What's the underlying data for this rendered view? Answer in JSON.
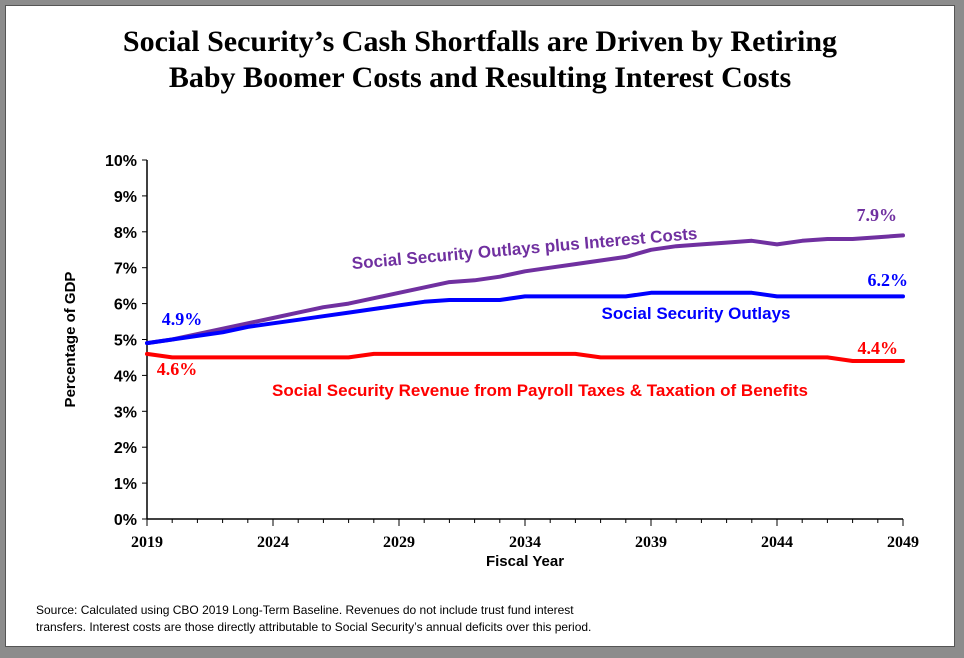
{
  "title_line1": "Social Security’s Cash Shortfalls are Driven by Retiring",
  "title_line2": "Baby Boomer Costs and Resulting Interest Costs",
  "source_line1": "Source: Calculated using CBO 2019 Long-Term Baseline. Revenues do not include trust fund interest",
  "source_line2": "transfers. Interest costs are those directly attributable to Social Security’s annual deficits over this period.",
  "colors": {
    "interest": "#7030a0",
    "outlays": "#0000ff",
    "revenue": "#ff0000"
  },
  "chart_data": {
    "type": "line",
    "xlabel": "Fiscal Year",
    "ylabel": "Percentage of GDP",
    "xlim": [
      2019,
      2049
    ],
    "ylim": [
      0,
      10
    ],
    "x_ticks": [
      2019,
      2024,
      2029,
      2034,
      2039,
      2044,
      2049
    ],
    "y_ticks": [
      "0%",
      "1%",
      "2%",
      "3%",
      "4%",
      "5%",
      "6%",
      "7%",
      "8%",
      "9%",
      "10%"
    ],
    "grid": false,
    "x": [
      2019,
      2020,
      2021,
      2022,
      2023,
      2024,
      2025,
      2026,
      2027,
      2028,
      2029,
      2030,
      2031,
      2032,
      2033,
      2034,
      2035,
      2036,
      2037,
      2038,
      2039,
      2040,
      2041,
      2042,
      2043,
      2044,
      2045,
      2046,
      2047,
      2048,
      2049
    ],
    "series": [
      {
        "name": "Social Security Outlays plus Interest Costs",
        "color_key": "interest",
        "values": [
          4.9,
          5.0,
          5.15,
          5.3,
          5.45,
          5.6,
          5.75,
          5.9,
          6.0,
          6.15,
          6.3,
          6.45,
          6.6,
          6.65,
          6.75,
          6.9,
          7.0,
          7.1,
          7.2,
          7.3,
          7.5,
          7.6,
          7.65,
          7.7,
          7.75,
          7.65,
          7.75,
          7.8,
          7.8,
          7.85,
          7.9
        ]
      },
      {
        "name": "Social Security Outlays",
        "color_key": "outlays",
        "values": [
          4.9,
          5.0,
          5.1,
          5.2,
          5.35,
          5.45,
          5.55,
          5.65,
          5.75,
          5.85,
          5.95,
          6.05,
          6.1,
          6.1,
          6.1,
          6.2,
          6.2,
          6.2,
          6.2,
          6.2,
          6.3,
          6.3,
          6.3,
          6.3,
          6.3,
          6.2,
          6.2,
          6.2,
          6.2,
          6.2,
          6.2
        ]
      },
      {
        "name": "Social Security Revenue from Payroll Taxes & Taxation of Benefits",
        "color_key": "revenue",
        "values": [
          4.6,
          4.5,
          4.5,
          4.5,
          4.5,
          4.5,
          4.5,
          4.5,
          4.5,
          4.6,
          4.6,
          4.6,
          4.6,
          4.6,
          4.6,
          4.6,
          4.6,
          4.6,
          4.5,
          4.5,
          4.5,
          4.5,
          4.5,
          4.5,
          4.5,
          4.5,
          4.5,
          4.5,
          4.4,
          4.4,
          4.4
        ]
      }
    ],
    "annotations": [
      {
        "text": "4.9%",
        "color_key": "outlays"
      },
      {
        "text": "4.6%",
        "color_key": "revenue"
      },
      {
        "text": "7.9%",
        "color_key": "interest"
      },
      {
        "text": "6.2%",
        "color_key": "outlays"
      },
      {
        "text": "4.4%",
        "color_key": "revenue"
      }
    ]
  }
}
